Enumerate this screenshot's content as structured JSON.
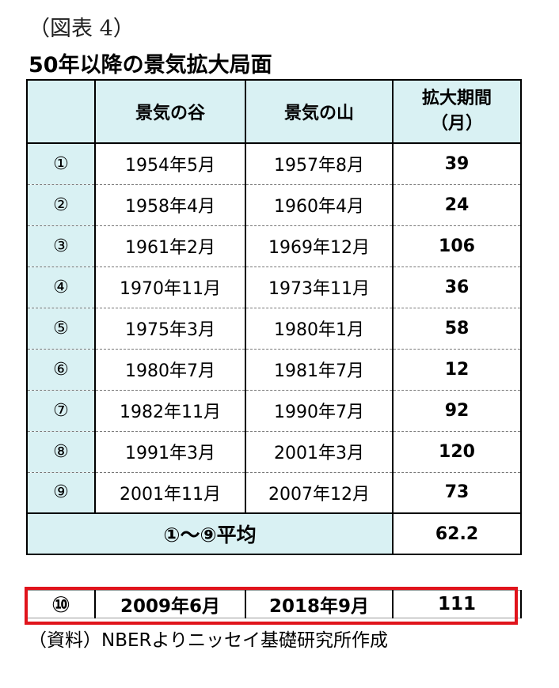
{
  "figure_label": "（図表 4）",
  "title": "50年以降の景気拡大局面",
  "table": {
    "headers": {
      "trough": "景気の谷",
      "peak": "景気の山",
      "duration": "拡大期間\n（月）"
    },
    "rows": [
      {
        "no": "①",
        "trough": "1954年5月",
        "peak": "1957年8月",
        "months": "39"
      },
      {
        "no": "②",
        "trough": "1958年4月",
        "peak": "1960年4月",
        "months": "24"
      },
      {
        "no": "③",
        "trough": "1961年2月",
        "peak": "1969年12月",
        "months": "106"
      },
      {
        "no": "④",
        "trough": "1970年11月",
        "peak": "1973年11月",
        "months": "36"
      },
      {
        "no": "⑤",
        "trough": "1975年3月",
        "peak": "1980年1月",
        "months": "58"
      },
      {
        "no": "⑥",
        "trough": "1980年7月",
        "peak": "1981年7月",
        "months": "12"
      },
      {
        "no": "⑦",
        "trough": "1982年11月",
        "peak": "1990年7月",
        "months": "92"
      },
      {
        "no": "⑧",
        "trough": "1991年3月",
        "peak": "2001年3月",
        "months": "120"
      },
      {
        "no": "⑨",
        "trough": "2001年11月",
        "peak": "2007年12月",
        "months": "73"
      }
    ],
    "average": {
      "label": "①～⑨平均",
      "months": "62.2"
    }
  },
  "latest": {
    "no": "⑩",
    "trough": "2009年6月",
    "peak": "2018年9月",
    "months": "111"
  },
  "source": "（資料）NBERよりニッセイ基礎研究所作成",
  "colors": {
    "header_bg": "#d9f1f3",
    "highlight_border": "#e0141c"
  }
}
